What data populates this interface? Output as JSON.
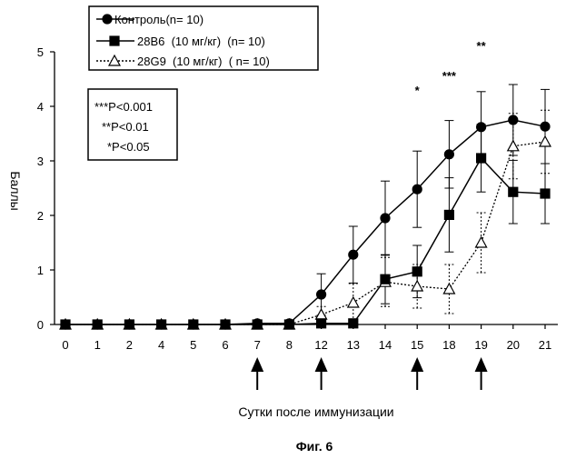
{
  "chart_data": {
    "type": "line",
    "title": "",
    "xlabel": "Сутки после иммунизации",
    "ylabel": "Баллы",
    "ylim": [
      0,
      5
    ],
    "yticks": [
      0,
      1,
      2,
      3,
      4,
      5
    ],
    "categories": [
      "0",
      "1",
      "2",
      "4",
      "5",
      "6",
      "7",
      "8",
      "12",
      "13",
      "14",
      "15",
      "18",
      "19",
      "20",
      "21"
    ],
    "series": [
      {
        "name": "Контроль(n= 10)",
        "legend_label": "Контроль(n= 10)",
        "marker": "circle",
        "fill": "filled",
        "line": "solid",
        "values": [
          0,
          0,
          0,
          0,
          0,
          0,
          0.02,
          0.02,
          0.55,
          1.28,
          1.95,
          2.48,
          3.12,
          3.62,
          3.75,
          3.63
        ],
        "errors": [
          0,
          0,
          0,
          0,
          0,
          0,
          0,
          0,
          0.38,
          0.52,
          0.68,
          0.7,
          0.62,
          0.65,
          0.65,
          0.68
        ]
      },
      {
        "name": "28B6  (10 мг/кг)  (n= 10)",
        "legend_label": "28B6  (10 мг/кг)  (n= 10)",
        "marker": "square",
        "fill": "filled",
        "line": "solid",
        "values": [
          0,
          0,
          0,
          0,
          0,
          0,
          0,
          0,
          0.02,
          0.02,
          0.83,
          0.97,
          2.01,
          3.05,
          2.43,
          2.4
        ],
        "errors": [
          0,
          0,
          0,
          0,
          0,
          0,
          0,
          0,
          0,
          0,
          0.45,
          0.48,
          0.68,
          0.62,
          0.58,
          0.55
        ]
      },
      {
        "name": "28G9  (10 мг/кг)  ( n= 10)",
        "legend_label": "28G9  (10 мг/кг)  ( n= 10)",
        "marker": "triangle",
        "fill": "open",
        "line": "dotted",
        "values": [
          0,
          0,
          0,
          0,
          0,
          0,
          0,
          0,
          0.18,
          0.4,
          0.78,
          0.7,
          0.65,
          1.5,
          3.27,
          3.35
        ],
        "errors": [
          0,
          0,
          0,
          0,
          0,
          0,
          0,
          0,
          0.15,
          0.35,
          0.45,
          0.4,
          0.45,
          0.55,
          0.6,
          0.58
        ]
      }
    ],
    "significance": [
      {
        "category": "15",
        "label": "*"
      },
      {
        "category": "18",
        "label": "***"
      },
      {
        "category": "19",
        "label": "**"
      }
    ],
    "arrows_at": [
      "7",
      "12",
      "15",
      "19"
    ],
    "pvalue_box": [
      "***P<0.001",
      "**P<0.01",
      "*P<0.05"
    ],
    "grid": false,
    "legend_position": "top-left"
  },
  "caption": "Фиг. 6"
}
